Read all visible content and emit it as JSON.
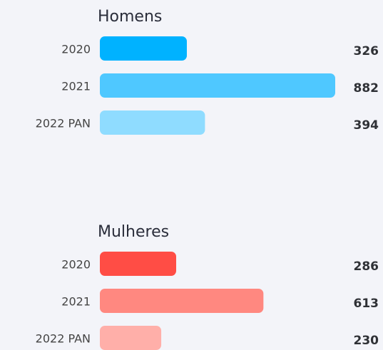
{
  "chart_data": [
    {
      "type": "bar",
      "title": "Homens",
      "categories": [
        "2020",
        "2021",
        "2022 PAN"
      ],
      "values": [
        326,
        882,
        394
      ],
      "colors": [
        "#00b2ff",
        "#4fc8ff",
        "#8fdcff"
      ]
    },
    {
      "type": "bar",
      "title": "Mulheres",
      "categories": [
        "2020",
        "2021",
        "2022 PAN"
      ],
      "values": [
        286,
        613,
        230
      ],
      "colors": [
        "#ff4d45",
        "#ff8880",
        "#ffafa9"
      ]
    }
  ]
}
